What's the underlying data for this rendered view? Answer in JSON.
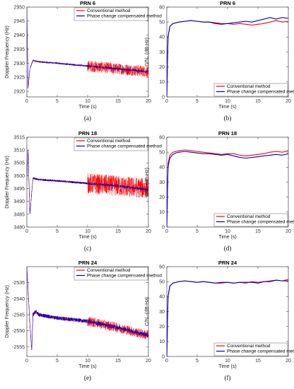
{
  "colors": {
    "conventional": "#ff0000",
    "compensated": "#0000cc"
  },
  "chart_data": [
    {
      "type": "line",
      "caption": "(a)",
      "title": "PRN  6",
      "xlabel": "Time (s)",
      "ylabel": "Doppler Frequency (Hz)",
      "xlim": [
        0,
        20
      ],
      "ylim": [
        2918,
        2950
      ],
      "xticks": [
        "0",
        "5",
        "10",
        "15",
        "20"
      ],
      "yticks": [
        "2920",
        "2925",
        "2930",
        "2935",
        "2940",
        "2945",
        "2950"
      ],
      "legend_loc": "top-right",
      "series": [
        {
          "name": "Conventional method",
          "noise": [
            0.3,
            0.3,
            2.0
          ],
          "x": [
            0,
            0.2,
            0.5,
            1,
            2,
            5,
            10,
            15,
            20
          ],
          "y": [
            2950,
            2921,
            2928,
            2931,
            2930.5,
            2930,
            2929,
            2928,
            2927
          ]
        },
        {
          "name": "Phase change compensated method",
          "noise": [
            0.3,
            0.3,
            0.4
          ],
          "x": [
            0,
            0.2,
            0.5,
            1,
            2,
            5,
            10,
            15,
            20
          ],
          "y": [
            2950,
            2921,
            2928,
            2931,
            2930.5,
            2930,
            2929,
            2928,
            2927
          ]
        }
      ]
    },
    {
      "type": "line",
      "caption": "(b)",
      "title": "PRN  6",
      "xlabel": "Time (s)",
      "ylabel": "C/N₀ (dB-Hz)",
      "xlim": [
        0,
        20
      ],
      "ylim": [
        0,
        60
      ],
      "xticks": [
        "0",
        "5",
        "10",
        "15",
        "20"
      ],
      "yticks": [
        "0",
        "10",
        "20",
        "30",
        "40",
        "50",
        "60"
      ],
      "legend_loc": "bottom-right",
      "series": [
        {
          "name": "Conventional method",
          "x": [
            0,
            0.2,
            0.5,
            1,
            1.5,
            2,
            3,
            4,
            5,
            6,
            7,
            8,
            9,
            10,
            11,
            12,
            13,
            14,
            15,
            16,
            17,
            18,
            19,
            20
          ],
          "y": [
            0,
            40,
            47,
            49,
            49.5,
            50,
            50.5,
            51,
            50.5,
            50,
            50,
            49.5,
            49,
            49,
            48.5,
            49,
            48.5,
            48,
            48.5,
            49,
            50,
            51,
            50,
            50.5
          ]
        },
        {
          "name": "Phase change compensated method",
          "x": [
            0,
            0.2,
            0.5,
            1,
            1.5,
            2,
            3,
            4,
            5,
            6,
            7,
            8,
            9,
            10,
            11,
            12,
            13,
            14,
            15,
            16,
            17,
            18,
            19,
            20
          ],
          "y": [
            0,
            40,
            47,
            49,
            49.5,
            50,
            50.5,
            51,
            50.5,
            50,
            50,
            49,
            48.5,
            49,
            49.5,
            50,
            50.5,
            50,
            51,
            52,
            53,
            52,
            53,
            52.5
          ]
        }
      ]
    },
    {
      "type": "line",
      "caption": "(c)",
      "title": "PRN  18",
      "xlabel": "Time (s)",
      "ylabel": "Doppler Frequency (Hz)",
      "xlim": [
        0,
        20
      ],
      "ylim": [
        3480,
        3515
      ],
      "xticks": [
        "0",
        "5",
        "10",
        "15",
        "20"
      ],
      "yticks": [
        "3480",
        "3485",
        "3490",
        "3495",
        "3500",
        "3505",
        "3510",
        "3515"
      ],
      "legend_loc": "top-right",
      "series": [
        {
          "name": "Conventional method",
          "noise": [
            0.4,
            0.4,
            4.0
          ],
          "x": [
            0,
            0.2,
            0.5,
            1,
            2,
            5,
            10,
            15,
            20
          ],
          "y": [
            3498,
            3510,
            3485,
            3499,
            3498.5,
            3498,
            3497,
            3496,
            3495
          ]
        },
        {
          "name": "Phase change compensated method",
          "noise": [
            0.4,
            0.4,
            0.5
          ],
          "x": [
            0,
            0.2,
            0.5,
            1,
            2,
            5,
            10,
            15,
            20
          ],
          "y": [
            3498,
            3510,
            3485,
            3499,
            3498.5,
            3498,
            3497,
            3496,
            3494.5
          ]
        }
      ]
    },
    {
      "type": "line",
      "caption": "(d)",
      "title": "PRN  18",
      "xlabel": "Time (s)",
      "ylabel": "C/N₀ (dB-Hz)",
      "xlim": [
        0,
        20
      ],
      "ylim": [
        0,
        60
      ],
      "xticks": [
        "0",
        "5",
        "10",
        "15",
        "20"
      ],
      "yticks": [
        "0",
        "10",
        "20",
        "30",
        "40",
        "50",
        "60"
      ],
      "legend_loc": "bottom-right",
      "series": [
        {
          "name": "Conventional method",
          "x": [
            0,
            0.2,
            0.5,
            1,
            1.5,
            2,
            3,
            4,
            5,
            6,
            7,
            8,
            9,
            10,
            11,
            12,
            13,
            14,
            15,
            16,
            17,
            18,
            19,
            20
          ],
          "y": [
            0,
            42,
            48,
            50,
            50.5,
            51,
            51.5,
            51,
            50.5,
            50,
            49.5,
            49,
            48.5,
            49,
            49,
            48,
            47.5,
            48,
            48.5,
            49,
            50,
            50.5,
            50,
            51
          ]
        },
        {
          "name": "Phase change compensated method",
          "x": [
            0,
            0.2,
            0.5,
            1,
            1.5,
            2,
            3,
            4,
            5,
            6,
            7,
            8,
            9,
            10,
            11,
            12,
            13,
            14,
            15,
            16,
            17,
            18,
            19,
            20
          ],
          "y": [
            0,
            40,
            46,
            48.5,
            49.5,
            50,
            50.5,
            50,
            49.5,
            49,
            49,
            48.5,
            48,
            48.5,
            47.5,
            46.5,
            46,
            46.5,
            47,
            47.5,
            48,
            48.5,
            48,
            49
          ]
        }
      ]
    },
    {
      "type": "line",
      "caption": "(e)",
      "title": "PRN  24",
      "xlabel": "Time (s)",
      "ylabel": "Doppler Frequency (Hz)",
      "xlim": [
        0,
        20
      ],
      "ylim": [
        -2558,
        -2530
      ],
      "xticks": [
        "0",
        "5",
        "10",
        "15",
        "20"
      ],
      "yticks": [
        "-2555",
        "-2550",
        "-2545",
        "-2540",
        "-2535"
      ],
      "legend_loc": "top-right",
      "series": [
        {
          "name": "Conventional method",
          "noise": [
            0.6,
            0.6,
            1.5
          ],
          "x": [
            0,
            0.5,
            0.8,
            1,
            1.5,
            2,
            5,
            10,
            15,
            20
          ],
          "y": [
            -2530,
            -2548,
            -2556,
            -2545,
            -2544,
            -2545,
            -2546,
            -2547,
            -2549,
            -2551.5
          ]
        },
        {
          "name": "Phase change compensated method",
          "noise": [
            0.6,
            0.6,
            0.6
          ],
          "x": [
            0,
            0.5,
            0.8,
            1,
            1.5,
            2,
            5,
            10,
            15,
            20
          ],
          "y": [
            -2530,
            -2548,
            -2556,
            -2545,
            -2544,
            -2545,
            -2546,
            -2547,
            -2549,
            -2551.5
          ]
        }
      ]
    },
    {
      "type": "line",
      "caption": "(f)",
      "title": "PRN  24",
      "xlabel": "Time (s)",
      "ylabel": "C/N₀ (dB-Hz)",
      "xlim": [
        0,
        20
      ],
      "ylim": [
        0,
        60
      ],
      "xticks": [
        "0",
        "5",
        "10",
        "15",
        "20"
      ],
      "yticks": [
        "0",
        "10",
        "20",
        "30",
        "40",
        "50",
        "60"
      ],
      "legend_loc": "bottom-right",
      "series": [
        {
          "name": "Conventional method",
          "x": [
            0,
            0.2,
            0.5,
            1,
            1.5,
            2,
            3,
            4,
            5,
            6,
            7,
            8,
            9,
            10,
            11,
            12,
            13,
            14,
            15,
            16,
            17,
            18,
            19,
            20
          ],
          "y": [
            0,
            40,
            47,
            49,
            49.5,
            50,
            50.5,
            50,
            49.5,
            50,
            49.5,
            49,
            49,
            49.5,
            49,
            49.5,
            49,
            50,
            49.5,
            50,
            50.5,
            51,
            50.5,
            51.5
          ]
        },
        {
          "name": "Phase change compensated method",
          "x": [
            0,
            0.2,
            0.5,
            1,
            1.5,
            2,
            3,
            4,
            5,
            6,
            7,
            8,
            9,
            10,
            11,
            12,
            13,
            14,
            15,
            16,
            17,
            18,
            19,
            20
          ],
          "y": [
            0,
            40,
            47,
            49,
            49.5,
            50,
            50.5,
            50,
            49.5,
            50,
            49.5,
            49,
            49.5,
            49.5,
            49,
            49.5,
            49.5,
            49.5,
            49,
            50,
            50,
            51,
            50.5,
            50.5
          ]
        }
      ]
    }
  ]
}
